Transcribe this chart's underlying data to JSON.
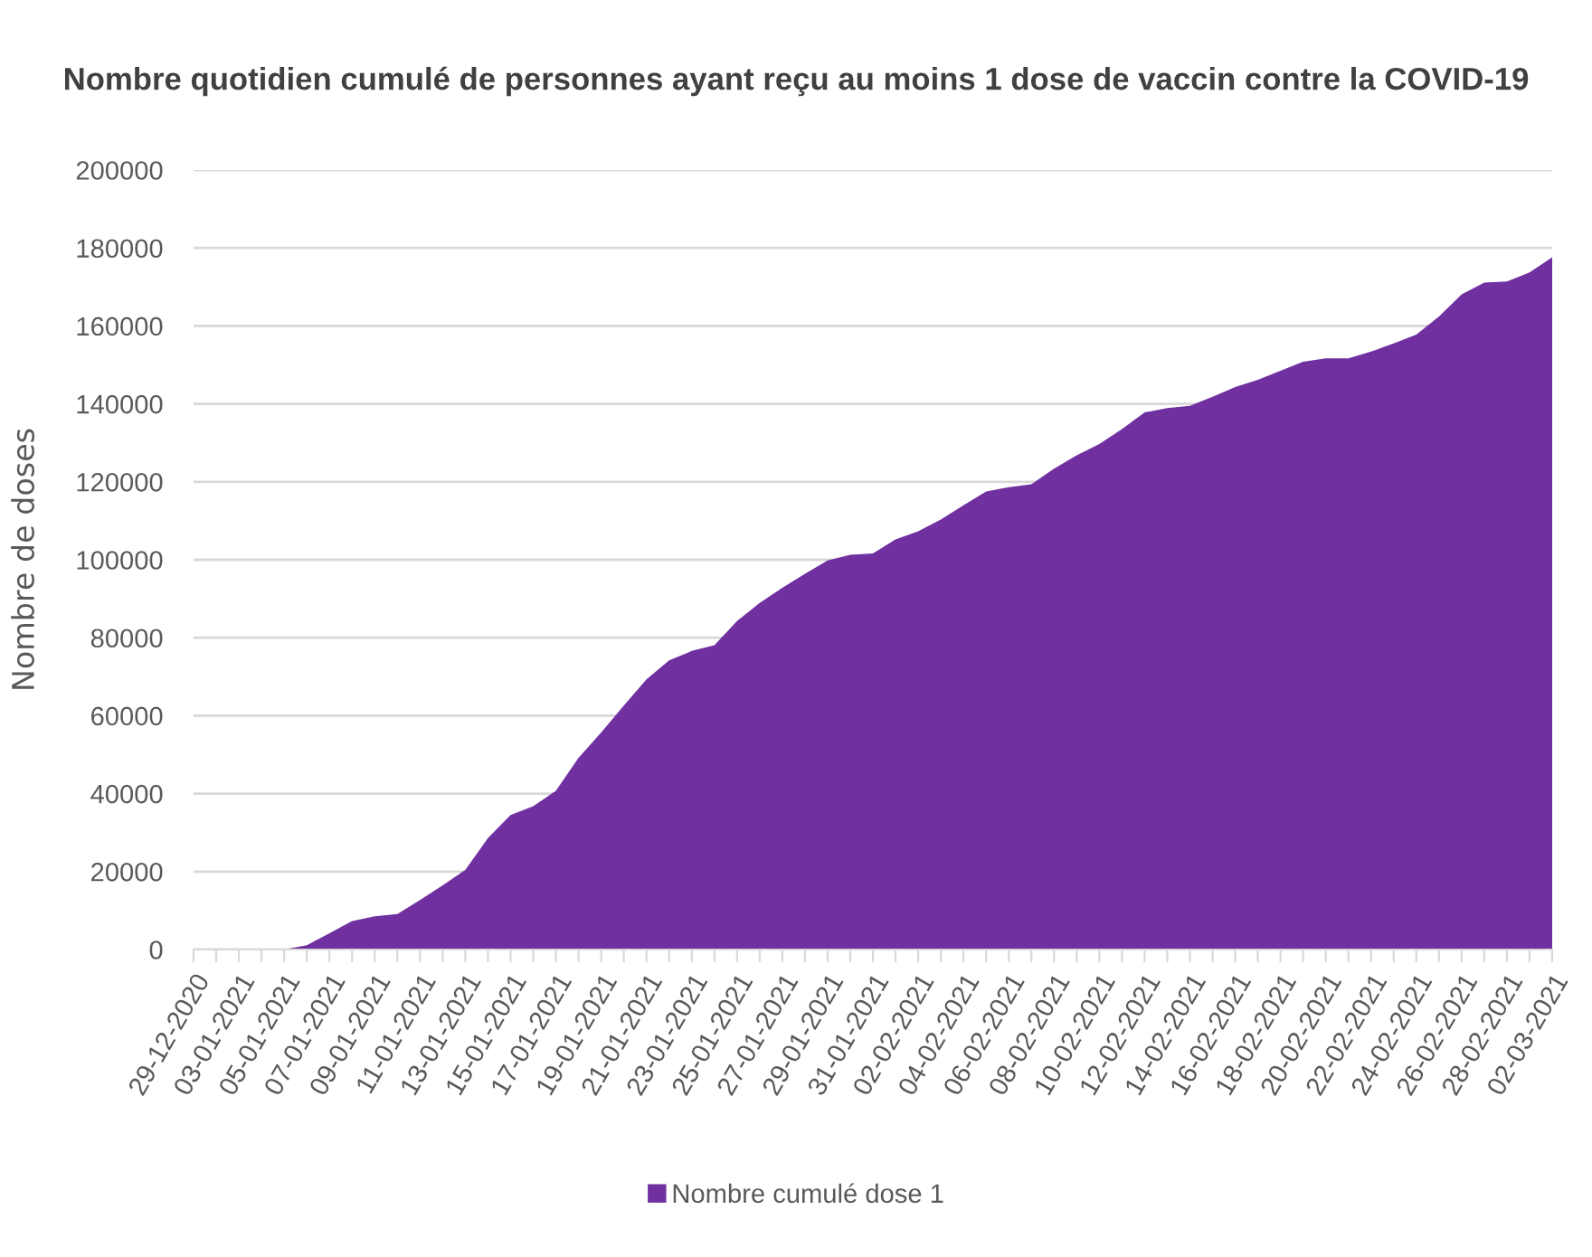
{
  "chart_data": {
    "type": "area",
    "title": "Nombre quotidien cumulé de personnes ayant reçu au moins 1 dose de vaccin contre la COVID-19",
    "ylabel": "Nombre de doses",
    "categories": [
      "29-12-2020",
      null,
      "03-01-2021",
      null,
      "05-01-2021",
      null,
      "07-01-2021",
      null,
      "09-01-2021",
      null,
      "11-01-2021",
      null,
      "13-01-2021",
      null,
      "15-01-2021",
      null,
      "17-01-2021",
      null,
      "19-01-2021",
      null,
      "21-01-2021",
      null,
      "23-01-2021",
      null,
      "25-01-2021",
      null,
      "27-01-2021",
      null,
      "29-01-2021",
      null,
      "31-01-2021",
      null,
      "02-02-2021",
      null,
      "04-02-2021",
      null,
      "06-02-2021",
      null,
      "08-02-2021",
      null,
      "10-02-2021",
      null,
      "12-02-2021",
      null,
      "14-02-2021",
      null,
      "16-02-2021",
      null,
      "18-02-2021",
      null,
      "20-02-2021",
      null,
      "22-02-2021",
      null,
      "24-02-2021",
      null,
      "26-02-2021",
      null,
      "28-02-2021",
      null,
      "02-03-2021"
    ],
    "series": [
      {
        "name": "Nombre cumulé dose 1",
        "color": "#7030a0",
        "values": [
          0,
          0,
          0,
          0,
          0,
          1100,
          4200,
          7300,
          8500,
          9100,
          12700,
          16500,
          20400,
          28600,
          34500,
          36800,
          40700,
          49200,
          55700,
          62600,
          69300,
          74200,
          76600,
          78100,
          84300,
          88900,
          92800,
          96400,
          99800,
          101300,
          101600,
          105200,
          107300,
          110300,
          114000,
          117500,
          118600,
          119400,
          123400,
          126800,
          129700,
          133500,
          137800,
          138900,
          139500,
          141800,
          144300,
          146200,
          148500,
          150800,
          151700,
          151700,
          153400,
          155500,
          157800,
          162400,
          168100,
          171100,
          171400,
          173700,
          177600
        ]
      }
    ],
    "ylim": [
      0,
      200000
    ],
    "yticks": [
      0,
      20000,
      40000,
      60000,
      80000,
      100000,
      120000,
      140000,
      160000,
      180000,
      200000
    ],
    "grid": "y",
    "legend": "bottom"
  }
}
